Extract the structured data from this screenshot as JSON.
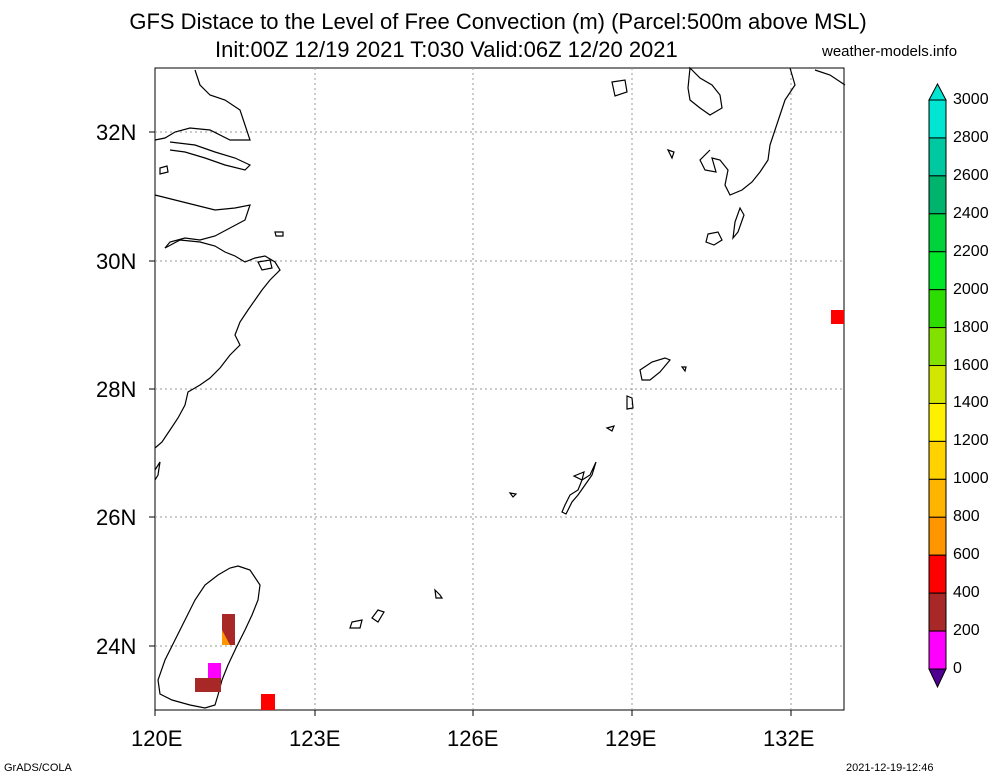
{
  "title_line1": "GFS Distace to the Level of Free Convection (m) (Parcel:500m above MSL)",
  "title_line2": "Init:00Z 12/19 2021 T:030 Valid:06Z 12/20 2021",
  "site": "weather-models.info",
  "map": {
    "lon_range": [
      120,
      133
    ],
    "lat_range": [
      23,
      33
    ],
    "lat_labels": [
      "32N",
      "30N",
      "28N",
      "26N",
      "24N"
    ],
    "lon_labels": [
      "120E",
      "123E",
      "126E",
      "129E",
      "132E"
    ],
    "grid": "dotted"
  },
  "colorbar": {
    "labels": [
      "3000",
      "2800",
      "2600",
      "2400",
      "2200",
      "2000",
      "1800",
      "1600",
      "1400",
      "1200",
      "1000",
      "800",
      "600",
      "400",
      "200",
      "0"
    ],
    "colors": [
      "#00e6d2",
      "#00c8a0",
      "#00b46e",
      "#00d23c",
      "#00e628",
      "#2ddc00",
      "#82e100",
      "#d2e600",
      "#fff000",
      "#ffd200",
      "#ffb400",
      "#ff9600",
      "#ff0000",
      "#a82828",
      "#ff00ff",
      "#500090"
    ]
  },
  "footer_left": "GrADS/COLA",
  "footer_right": "2021-12-19-12:46"
}
